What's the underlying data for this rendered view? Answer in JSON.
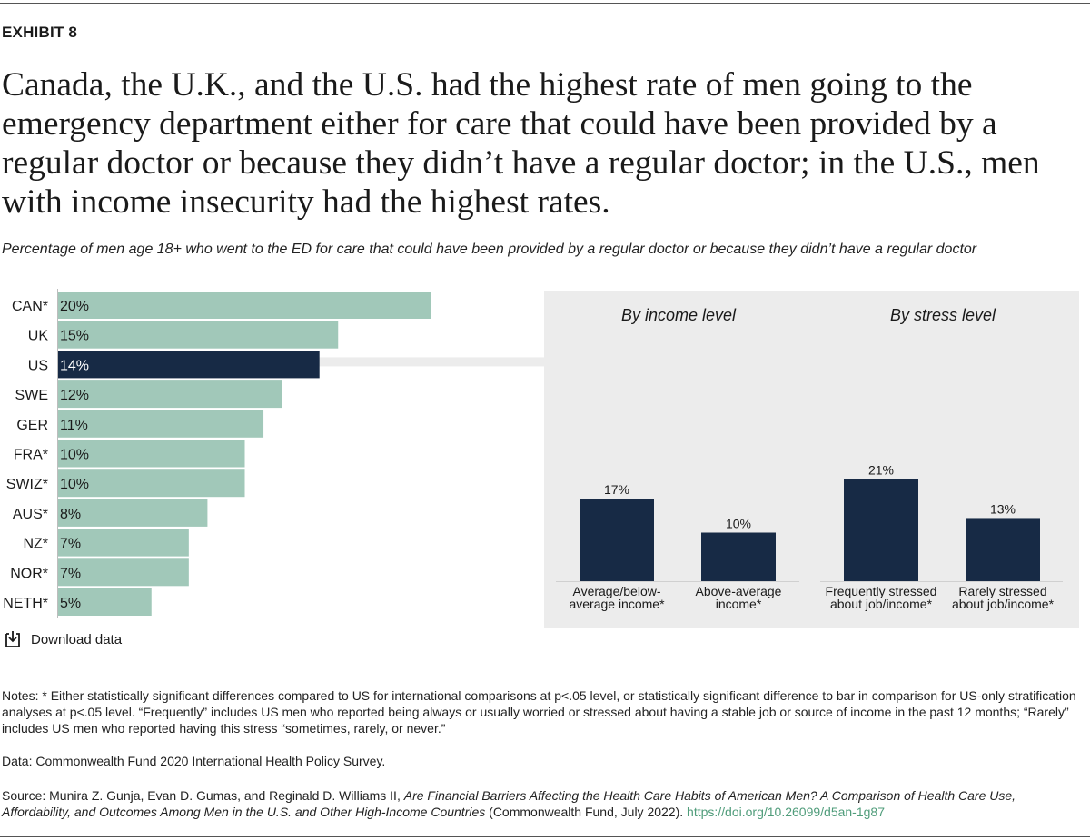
{
  "exhibit_label": "EXHIBIT 8",
  "headline": "Canada, the U.K., and the U.S. had the highest rate of men going to the emergency department either for care that could have been provided by a regular doctor or because they didn’t have a regular doctor; in the U.S., men with income insecurity had the highest rates.",
  "subtitle": "Percentage of men age 18+ who went to the ED for care that could have been provided by a regular doctor or because they didn’t have a regular doctor",
  "colors": {
    "bar_default": "#a1c8b9",
    "bar_highlight": "#172a45",
    "panel_bg": "#ececec",
    "link": "#4f9c7a"
  },
  "chart_data": [
    {
      "type": "bar",
      "orientation": "horizontal",
      "categories": [
        "CAN*",
        "UK",
        "US",
        "SWE",
        "GER",
        "FRA*",
        "SWIZ*",
        "AUS*",
        "NZ*",
        "NOR*",
        "NETH*"
      ],
      "values": [
        20,
        15,
        14,
        12,
        11,
        10,
        10,
        8,
        7,
        7,
        5
      ],
      "value_labels": [
        "20%",
        "15%",
        "14%",
        "12%",
        "11%",
        "10%",
        "10%",
        "8%",
        "7%",
        "7%",
        "5%"
      ],
      "highlight": "US",
      "xlim": [
        0,
        20
      ]
    },
    {
      "type": "bar",
      "title": "By income level",
      "categories": [
        "Average/below-average income*",
        "Above-average income*"
      ],
      "category_lines": [
        [
          "Average/below-",
          "average income*"
        ],
        [
          "Above-average",
          "income*"
        ]
      ],
      "values": [
        17,
        10
      ],
      "value_labels": [
        "17%",
        "10%"
      ],
      "ylim": [
        0,
        25
      ]
    },
    {
      "type": "bar",
      "title": "By stress level",
      "categories": [
        "Frequently stressed about job/income*",
        "Rarely stressed about job/income*"
      ],
      "category_lines": [
        [
          "Frequently stressed",
          "about job/income*"
        ],
        [
          "Rarely stressed",
          "about job/income*"
        ]
      ],
      "values": [
        21,
        13
      ],
      "value_labels": [
        "21%",
        "13%"
      ],
      "ylim": [
        0,
        25
      ]
    }
  ],
  "download_label": "Download data",
  "notes": "Notes: * Either statistically significant differences compared to US for international comparisons at p<.05 level, or statistically significant difference to bar in comparison for US-only stratification analyses at p<.05 level. “Frequently” includes US men who reported being always or usually worried or stressed about having a stable job or source of income in the past 12 months; “Rarely” includes US men who reported having this stress “sometimes, rarely, or never.”",
  "data_source": "Data: Commonwealth Fund 2020 International Health Policy Survey.",
  "source": {
    "prefix": "Source: Munira Z. Gunja, Evan D. Gumas, and Reginald D. Williams II, ",
    "title": "Are Financial Barriers Affecting the Health Care Habits of American Men? A Comparison of Health Care Use, Affordability, and Outcomes Among Men in the U.S. and Other High-Income Countries",
    "suffix": " (Commonwealth Fund, July 2022). ",
    "link": "https://doi.org/10.26099/d5an-1g87"
  }
}
